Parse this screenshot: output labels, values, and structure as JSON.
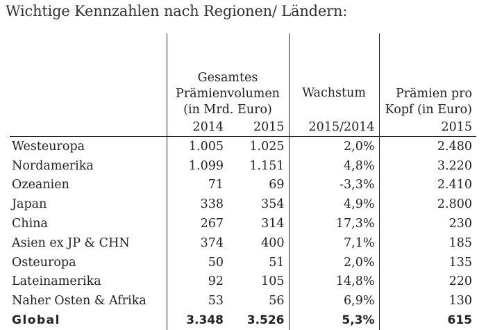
{
  "title": "Wichtige Kennzahlen nach Regionen/ Ländern:",
  "headers": {
    "premium_volume": "Gesamtes Prämienvolumen (in Mrd. Euro)",
    "growth": "Wachstum",
    "per_capita": "Prämien pro Kopf (in Euro)",
    "year_2014": "2014",
    "year_2015": "2015",
    "growth_period": "2015/2014",
    "per_capita_year": "2015"
  },
  "rows": [
    {
      "region": "Westeuropa",
      "v2014": "1.005",
      "v2015": "1.025",
      "growth": "2,0%",
      "per_capita": "2.480"
    },
    {
      "region": "Nordamerika",
      "v2014": "1.099",
      "v2015": "1.151",
      "growth": "4,8%",
      "per_capita": "3.220"
    },
    {
      "region": "Ozeanien",
      "v2014": "71",
      "v2015": "69",
      "growth": "-3,3%",
      "per_capita": "2.410"
    },
    {
      "region": "Japan",
      "v2014": "338",
      "v2015": "354",
      "growth": "4,9%",
      "per_capita": "2.800"
    },
    {
      "region": "China",
      "v2014": "267",
      "v2015": "314",
      "growth": "17,3%",
      "per_capita": "230"
    },
    {
      "region": "Asien ex JP & CHN",
      "v2014": "374",
      "v2015": "400",
      "growth": "7,1%",
      "per_capita": "185"
    },
    {
      "region": "Osteuropa",
      "v2014": "50",
      "v2015": "51",
      "growth": "2,0%",
      "per_capita": "135"
    },
    {
      "region": "Lateinamerika",
      "v2014": "92",
      "v2015": "105",
      "growth": "14,8%",
      "per_capita": "220"
    },
    {
      "region": "Naher Osten & Afrika",
      "v2014": "53",
      "v2015": "56",
      "growth": "6,9%",
      "per_capita": "130"
    }
  ],
  "total": {
    "region": "Global",
    "v2014": "3.348",
    "v2015": "3.526",
    "growth": "5,3%",
    "per_capita": "615"
  }
}
